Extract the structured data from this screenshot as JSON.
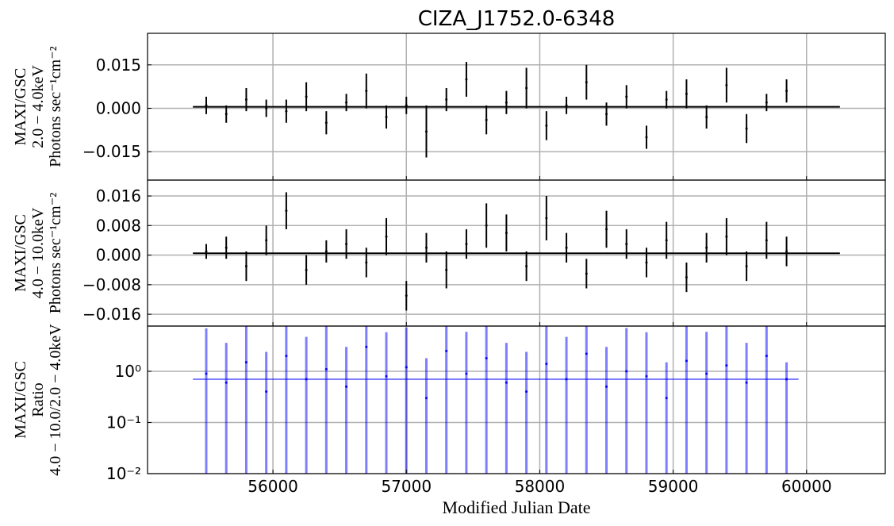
{
  "chart_data": [
    {
      "type": "errorbar",
      "title": "CIZA_J1752.0-6348",
      "ylabel": [
        "MAXI/GSC",
        "2.0 − 4.0keV",
        "Photons sec⁻¹cm⁻²"
      ],
      "color": "#000000",
      "grid": true,
      "xlim": [
        55060,
        60590
      ],
      "xticks": [
        56000,
        57000,
        58000,
        59000,
        60000
      ],
      "ylim": [
        -0.0248,
        0.0259
      ],
      "yticks": [
        {
          "value": -0.015,
          "label": "−0.015"
        },
        {
          "value": 0,
          "label": "0.000"
        },
        {
          "value": 0.015,
          "label": "0.015"
        }
      ],
      "x": [
        55500,
        55650,
        55800,
        55950,
        56100,
        56250,
        56400,
        56550,
        56700,
        56850,
        57000,
        57150,
        57300,
        57450,
        57600,
        57750,
        57900,
        58050,
        58200,
        58350,
        58500,
        58650,
        58800,
        58950,
        59100,
        59250,
        59400,
        59550,
        59700,
        59850
      ],
      "values": [
        0.001,
        -0.002,
        0.003,
        0.0,
        -0.001,
        0.004,
        -0.005,
        0.002,
        0.006,
        -0.003,
        0.001,
        -0.008,
        0.003,
        0.01,
        -0.004,
        0.002,
        0.007,
        -0.006,
        0.001,
        0.009,
        -0.002,
        0.004,
        -0.01,
        0.003,
        0.005,
        -0.003,
        0.008,
        -0.007,
        0.002,
        0.006
      ],
      "errors": [
        0.003,
        0.003,
        0.004,
        0.003,
        0.004,
        0.005,
        0.004,
        0.003,
        0.006,
        0.004,
        0.003,
        0.009,
        0.004,
        0.006,
        0.005,
        0.004,
        0.007,
        0.005,
        0.003,
        0.006,
        0.004,
        0.004,
        0.004,
        0.003,
        0.005,
        0.004,
        0.006,
        0.005,
        0.003,
        0.004
      ],
      "baseline": {
        "x": [
          55400,
          60250
        ],
        "values": [
          0.0005,
          0.0005
        ]
      }
    },
    {
      "type": "errorbar",
      "ylabel": [
        "MAXI/GSC",
        "4.0 − 10.0keV",
        "Photons sec⁻¹cm⁻²"
      ],
      "color": "#000000",
      "grid": true,
      "xlim": [
        55060,
        60590
      ],
      "xticks": [
        56000,
        57000,
        58000,
        59000,
        60000
      ],
      "ylim": [
        -0.0192,
        0.0203
      ],
      "yticks": [
        {
          "value": -0.016,
          "label": "−0.016"
        },
        {
          "value": -0.008,
          "label": "−0.008"
        },
        {
          "value": 0,
          "label": "0.000"
        },
        {
          "value": 0.008,
          "label": "0.008"
        },
        {
          "value": 0.016,
          "label": "0.016"
        }
      ],
      "x": [
        55500,
        55650,
        55800,
        55950,
        56100,
        56250,
        56400,
        56550,
        56700,
        56850,
        57000,
        57150,
        57300,
        57450,
        57600,
        57750,
        57900,
        58050,
        58200,
        58350,
        58500,
        58650,
        58800,
        58950,
        59100,
        59250,
        59400,
        59550,
        59700,
        59850
      ],
      "values": [
        0.001,
        0.002,
        -0.003,
        0.004,
        0.012,
        -0.004,
        0.001,
        0.003,
        -0.002,
        0.005,
        -0.011,
        0.002,
        -0.004,
        0.003,
        0.008,
        0.006,
        -0.003,
        0.01,
        0.002,
        -0.005,
        0.007,
        0.003,
        -0.002,
        0.004,
        -0.006,
        0.002,
        0.005,
        -0.003,
        0.004,
        0.001
      ],
      "errors": [
        0.002,
        0.003,
        0.004,
        0.004,
        0.005,
        0.004,
        0.003,
        0.004,
        0.004,
        0.005,
        0.004,
        0.004,
        0.005,
        0.004,
        0.006,
        0.005,
        0.004,
        0.006,
        0.004,
        0.004,
        0.005,
        0.004,
        0.004,
        0.005,
        0.004,
        0.004,
        0.005,
        0.004,
        0.005,
        0.004
      ],
      "baseline": {
        "x": [
          55400,
          60250
        ],
        "values": [
          0.0005,
          0.0005
        ]
      }
    },
    {
      "type": "errorbar",
      "log_y": true,
      "ylabel": [
        "MAXI/GSC",
        "Ratio",
        "4.0 − 10.0/2.0 − 4.0keV"
      ],
      "xlabel": "Modified Julian Date",
      "color": "#0000ff",
      "grid": true,
      "xlim": [
        55060,
        60590
      ],
      "xticks": [
        56000,
        57000,
        58000,
        59000,
        60000
      ],
      "ylim": [
        0.01,
        7.65
      ],
      "yticks": [
        {
          "value": 0.01,
          "label": "10⁻²"
        },
        {
          "value": 0.1,
          "label": "10⁻¹"
        },
        {
          "value": 1,
          "label": "10⁰"
        }
      ],
      "x": [
        55500,
        55650,
        55800,
        55950,
        56100,
        56250,
        56400,
        56550,
        56700,
        56850,
        57000,
        57150,
        57300,
        57450,
        57600,
        57750,
        57900,
        58050,
        58200,
        58350,
        58500,
        58650,
        58800,
        58950,
        59100,
        59250,
        59400,
        59550,
        59700,
        59850
      ],
      "values": [
        0.9,
        0.6,
        1.5,
        0.4,
        2.0,
        0.7,
        1.1,
        0.5,
        3.0,
        0.8,
        1.2,
        0.3,
        2.5,
        0.9,
        1.8,
        0.6,
        0.4,
        1.4,
        0.7,
        2.2,
        0.5,
        1.0,
        0.8,
        0.3,
        1.6,
        0.9,
        1.3,
        0.6,
        2.0,
        0.7
      ],
      "errors": [
        6.0,
        3.0,
        8.0,
        2.0,
        9.0,
        4.0,
        7.0,
        2.5,
        10.0,
        5.0,
        6.0,
        1.5,
        9.0,
        5.0,
        8.0,
        3.0,
        2.0,
        7.0,
        4.0,
        9.0,
        2.5,
        6.0,
        5.0,
        1.2,
        8.0,
        5.0,
        7.0,
        3.0,
        9.0,
        0.8
      ],
      "baseline": {
        "x": [
          55400,
          59940
        ],
        "values": [
          0.7,
          0.7
        ]
      }
    }
  ]
}
